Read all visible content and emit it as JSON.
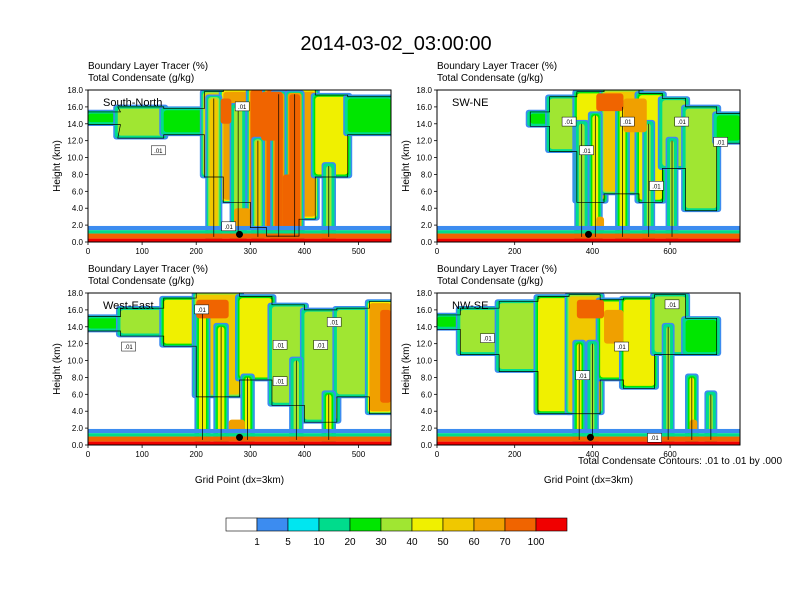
{
  "title": "2014-03-02_03:00:00",
  "panel_header": {
    "line1": "Boundary Layer Tracer   (%)",
    "line2": "Total Condensate   (g/kg)"
  },
  "ylabel": "Height (km)",
  "xlabel": "Grid Point (dx=3km)",
  "contour_note": "Total Condensate Contours: .01 to .01 by .000",
  "contour_label": ".01",
  "colorbar": {
    "colors": [
      "#ffffff",
      "#3c8cf0",
      "#00e6f0",
      "#00dc8c",
      "#00e600",
      "#a0e632",
      "#f0f000",
      "#f0c800",
      "#f0a000",
      "#f06400",
      "#f00000"
    ],
    "labels": [
      "1",
      "5",
      "10",
      "20",
      "30",
      "40",
      "50",
      "60",
      "70",
      "100"
    ]
  },
  "chart_data": [
    {
      "type": "heatmap",
      "panel_label": "South-North",
      "xlim": [
        0,
        560
      ],
      "xticks": [
        "0",
        "100",
        "200",
        "300",
        "400",
        "500"
      ],
      "ylim": [
        0,
        18
      ],
      "yticks": [
        "0.0",
        "2.0",
        "4.0",
        "6.0",
        "8.0",
        "10.0",
        "12.0",
        "14.0",
        "16.0",
        "18.0"
      ],
      "show_xlabel": false,
      "marker": {
        "x": 280,
        "y": 0.9
      },
      "anvil": [
        {
          "x0": 0,
          "x1": 60,
          "bot": 14.2,
          "top": 15.2,
          "v": 20
        },
        {
          "x0": 55,
          "x1": 140,
          "bot": 12.6,
          "top": 15.8,
          "v": 30
        },
        {
          "x0": 140,
          "x1": 215,
          "bot": 13.0,
          "top": 15.6,
          "v": 20
        },
        {
          "x0": 215,
          "x1": 250,
          "bot": 8.0,
          "top": 17.6,
          "v": 50
        },
        {
          "x0": 250,
          "x1": 300,
          "bot": 5.0,
          "top": 17.8,
          "v": 60
        },
        {
          "x0": 300,
          "x1": 330,
          "bot": 2.0,
          "top": 18.0,
          "v": 70
        },
        {
          "x0": 330,
          "x1": 390,
          "bot": 1.0,
          "top": 18.0,
          "v": 80
        },
        {
          "x0": 390,
          "x1": 420,
          "bot": 3.0,
          "top": 17.8,
          "v": 60
        },
        {
          "x0": 420,
          "x1": 480,
          "bot": 8.0,
          "top": 17.2,
          "v": 40
        },
        {
          "x0": 480,
          "x1": 560,
          "bot": 13.0,
          "top": 17.0,
          "v": 20
        }
      ],
      "columns": [
        {
          "x0": 225,
          "x1": 240,
          "bot": 0.6,
          "top": 17.0,
          "v": 50
        },
        {
          "x0": 270,
          "x1": 285,
          "bot": 0.6,
          "top": 16.0,
          "v": 30
        },
        {
          "x0": 345,
          "x1": 360,
          "bot": 0.6,
          "top": 17.5,
          "v": 80
        },
        {
          "x0": 372,
          "x1": 392,
          "bot": 0.6,
          "top": 17.5,
          "v": 80
        },
        {
          "x0": 310,
          "x1": 318,
          "bot": 0.6,
          "top": 12.0,
          "v": 50
        },
        {
          "x0": 440,
          "x1": 450,
          "bot": 0.6,
          "top": 9.0,
          "v": 30
        }
      ],
      "hot": [
        {
          "x0": 245,
          "x1": 265,
          "bot": 14.0,
          "top": 17.0,
          "v": 70
        },
        {
          "x0": 320,
          "x1": 360,
          "bot": 12.0,
          "top": 17.8,
          "v": 90
        },
        {
          "x0": 360,
          "x1": 390,
          "bot": 1.0,
          "top": 8.0,
          "v": 90
        },
        {
          "x0": 270,
          "x1": 300,
          "bot": 1.5,
          "top": 4.0,
          "v": 60
        }
      ],
      "labels": [
        {
          "x": 285,
          "y": 16.0
        },
        {
          "x": 130,
          "y": 10.8
        },
        {
          "x": 260,
          "y": 1.8
        }
      ]
    },
    {
      "type": "heatmap",
      "panel_label": "SW-NE",
      "xlim": [
        0,
        780
      ],
      "xticks": [
        "0",
        "200",
        "400",
        "600"
      ],
      "ylim": [
        0,
        18
      ],
      "yticks": [
        "0.0",
        "2.0",
        "4.0",
        "6.0",
        "8.0",
        "10.0",
        "12.0",
        "14.0",
        "16.0",
        "18.0"
      ],
      "show_xlabel": false,
      "marker": {
        "x": 390,
        "y": 0.9
      },
      "anvil": [
        {
          "x0": 240,
          "x1": 290,
          "bot": 14.0,
          "top": 15.2,
          "v": 20
        },
        {
          "x0": 290,
          "x1": 360,
          "bot": 11.0,
          "top": 17.0,
          "v": 30
        },
        {
          "x0": 360,
          "x1": 430,
          "bot": 5.0,
          "top": 17.6,
          "v": 40
        },
        {
          "x0": 430,
          "x1": 520,
          "bot": 6.0,
          "top": 17.8,
          "v": 50
        },
        {
          "x0": 520,
          "x1": 580,
          "bot": 5.0,
          "top": 17.4,
          "v": 40
        },
        {
          "x0": 580,
          "x1": 640,
          "bot": 9.0,
          "top": 16.8,
          "v": 30
        },
        {
          "x0": 640,
          "x1": 720,
          "bot": 4.0,
          "top": 15.8,
          "v": 30
        },
        {
          "x0": 720,
          "x1": 780,
          "bot": 12.0,
          "top": 15.0,
          "v": 20
        }
      ],
      "columns": [
        {
          "x0": 365,
          "x1": 380,
          "bot": 0.6,
          "top": 14.0,
          "v": 30
        },
        {
          "x0": 400,
          "x1": 415,
          "bot": 0.6,
          "top": 15.0,
          "v": 40
        },
        {
          "x0": 470,
          "x1": 485,
          "bot": 0.6,
          "top": 16.0,
          "v": 40
        },
        {
          "x0": 540,
          "x1": 550,
          "bot": 0.6,
          "top": 14.0,
          "v": 30
        },
        {
          "x0": 600,
          "x1": 610,
          "bot": 0.6,
          "top": 12.0,
          "v": 30
        }
      ],
      "hot": [
        {
          "x0": 410,
          "x1": 480,
          "bot": 15.5,
          "top": 17.6,
          "v": 70
        },
        {
          "x0": 480,
          "x1": 540,
          "bot": 13.0,
          "top": 17.0,
          "v": 60
        },
        {
          "x0": 410,
          "x1": 430,
          "bot": 1.0,
          "top": 3.0,
          "v": 60
        }
      ],
      "labels": [
        {
          "x": 340,
          "y": 14.2
        },
        {
          "x": 490,
          "y": 14.2
        },
        {
          "x": 630,
          "y": 14.2
        },
        {
          "x": 730,
          "y": 11.8
        },
        {
          "x": 385,
          "y": 10.8
        },
        {
          "x": 565,
          "y": 6.6
        }
      ]
    },
    {
      "type": "heatmap",
      "panel_label": "West-East",
      "xlim": [
        0,
        560
      ],
      "xticks": [
        "0",
        "100",
        "200",
        "300",
        "400",
        "500"
      ],
      "ylim": [
        0,
        18
      ],
      "yticks": [
        "0.0",
        "2.0",
        "4.0",
        "6.0",
        "8.0",
        "10.0",
        "12.0",
        "14.0",
        "16.0",
        "18.0"
      ],
      "show_xlabel": true,
      "marker": {
        "x": 280,
        "y": 0.9
      },
      "anvil": [
        {
          "x0": 0,
          "x1": 60,
          "bot": 13.8,
          "top": 15.0,
          "v": 20
        },
        {
          "x0": 60,
          "x1": 140,
          "bot": 13.2,
          "top": 16.0,
          "v": 30
        },
        {
          "x0": 140,
          "x1": 200,
          "bot": 12.0,
          "top": 17.2,
          "v": 40
        },
        {
          "x0": 200,
          "x1": 280,
          "bot": 6.0,
          "top": 17.8,
          "v": 50
        },
        {
          "x0": 280,
          "x1": 340,
          "bot": 8.0,
          "top": 17.4,
          "v": 40
        },
        {
          "x0": 340,
          "x1": 400,
          "bot": 5.0,
          "top": 16.4,
          "v": 30
        },
        {
          "x0": 400,
          "x1": 460,
          "bot": 3.0,
          "top": 15.8,
          "v": 30
        },
        {
          "x0": 460,
          "x1": 520,
          "bot": 6.0,
          "top": 16.0,
          "v": 30
        },
        {
          "x0": 520,
          "x1": 560,
          "bot": 4.0,
          "top": 16.8,
          "v": 60
        }
      ],
      "columns": [
        {
          "x0": 205,
          "x1": 218,
          "bot": 0.6,
          "top": 16.0,
          "v": 40
        },
        {
          "x0": 240,
          "x1": 252,
          "bot": 0.6,
          "top": 14.0,
          "v": 40
        },
        {
          "x0": 290,
          "x1": 300,
          "bot": 0.6,
          "top": 8.0,
          "v": 40
        },
        {
          "x0": 380,
          "x1": 390,
          "bot": 0.6,
          "top": 10.0,
          "v": 30
        },
        {
          "x0": 440,
          "x1": 450,
          "bot": 0.6,
          "top": 6.0,
          "v": 40
        }
      ],
      "hot": [
        {
          "x0": 200,
          "x1": 260,
          "bot": 15.0,
          "top": 17.2,
          "v": 70
        },
        {
          "x0": 540,
          "x1": 560,
          "bot": 5.0,
          "top": 16.0,
          "v": 70
        },
        {
          "x0": 260,
          "x1": 290,
          "bot": 1.0,
          "top": 3.0,
          "v": 60
        }
      ],
      "labels": [
        {
          "x": 210,
          "y": 16.0
        },
        {
          "x": 455,
          "y": 14.5
        },
        {
          "x": 75,
          "y": 11.6
        },
        {
          "x": 430,
          "y": 11.8
        },
        {
          "x": 355,
          "y": 11.8
        },
        {
          "x": 355,
          "y": 7.5
        }
      ]
    },
    {
      "type": "heatmap",
      "panel_label": "NW-SE",
      "xlim": [
        0,
        780
      ],
      "xticks": [
        "0",
        "200",
        "400",
        "600"
      ],
      "ylim": [
        0,
        18
      ],
      "yticks": [
        "0.0",
        "2.0",
        "4.0",
        "6.0",
        "8.0",
        "10.0",
        "12.0",
        "14.0",
        "16.0",
        "18.0"
      ],
      "show_xlabel": true,
      "marker": {
        "x": 395,
        "y": 0.9
      },
      "anvil": [
        {
          "x0": 0,
          "x1": 60,
          "bot": 14.0,
          "top": 15.2,
          "v": 20
        },
        {
          "x0": 60,
          "x1": 160,
          "bot": 11.0,
          "top": 16.0,
          "v": 30
        },
        {
          "x0": 160,
          "x1": 260,
          "bot": 9.0,
          "top": 16.8,
          "v": 30
        },
        {
          "x0": 260,
          "x1": 340,
          "bot": 4.0,
          "top": 17.4,
          "v": 40
        },
        {
          "x0": 340,
          "x1": 420,
          "bot": 4.0,
          "top": 17.6,
          "v": 50
        },
        {
          "x0": 420,
          "x1": 480,
          "bot": 8.0,
          "top": 17.0,
          "v": 40
        },
        {
          "x0": 480,
          "x1": 560,
          "bot": 7.0,
          "top": 17.2,
          "v": 40
        },
        {
          "x0": 560,
          "x1": 640,
          "bot": 11.0,
          "top": 17.6,
          "v": 30
        },
        {
          "x0": 640,
          "x1": 720,
          "bot": 11.0,
          "top": 14.8,
          "v": 20
        }
      ],
      "columns": [
        {
          "x0": 360,
          "x1": 372,
          "bot": 0.6,
          "top": 12.0,
          "v": 40
        },
        {
          "x0": 395,
          "x1": 405,
          "bot": 0.6,
          "top": 12.0,
          "v": 30
        },
        {
          "x0": 590,
          "x1": 600,
          "bot": 0.6,
          "top": 14.0,
          "v": 30
        },
        {
          "x0": 650,
          "x1": 662,
          "bot": 0.6,
          "top": 8.0,
          "v": 40
        },
        {
          "x0": 700,
          "x1": 710,
          "bot": 0.6,
          "top": 6.0,
          "v": 30
        }
      ],
      "hot": [
        {
          "x0": 360,
          "x1": 430,
          "bot": 15.0,
          "top": 17.2,
          "v": 70
        },
        {
          "x0": 430,
          "x1": 480,
          "bot": 12.0,
          "top": 16.0,
          "v": 60
        },
        {
          "x0": 650,
          "x1": 670,
          "bot": 1.0,
          "top": 3.0,
          "v": 60
        }
      ],
      "labels": [
        {
          "x": 605,
          "y": 16.6
        },
        {
          "x": 130,
          "y": 12.6
        },
        {
          "x": 475,
          "y": 11.6
        },
        {
          "x": 375,
          "y": 8.2
        },
        {
          "x": 560,
          "y": 0.8
        }
      ]
    }
  ]
}
